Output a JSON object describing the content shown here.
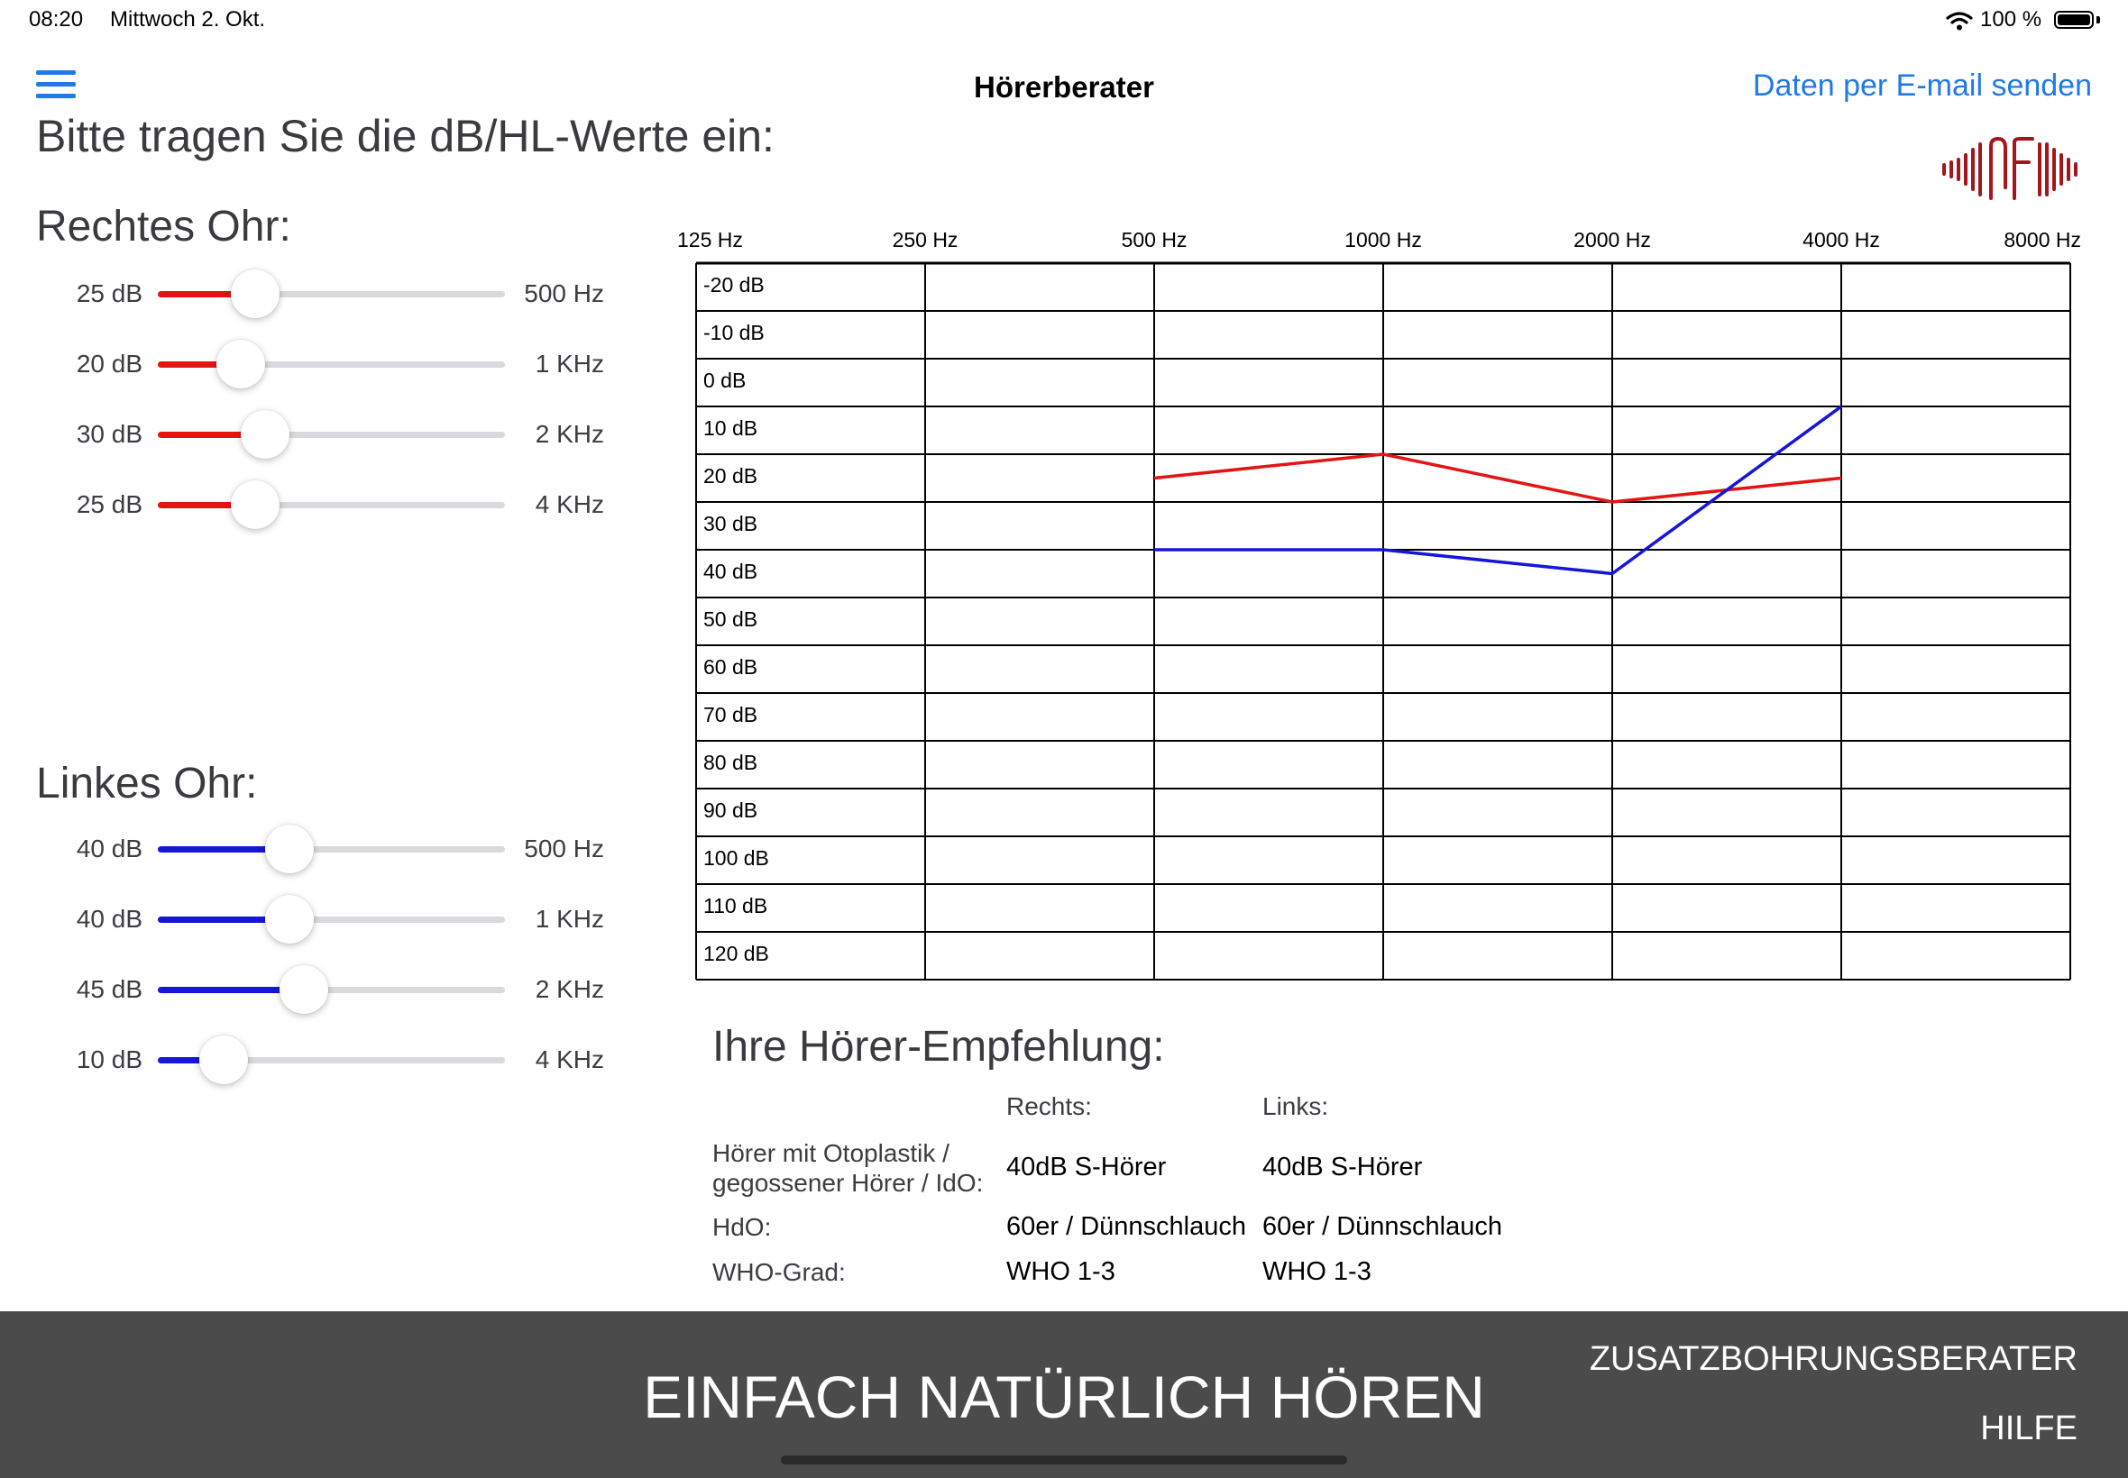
{
  "status_bar": {
    "time": "08:20",
    "date": "Mittwoch 2. Okt.",
    "battery": "100 %"
  },
  "nav": {
    "title": "Hörerberater",
    "email_link": "Daten per E-mail senden"
  },
  "instruction": "Bitte tragen Sie die dB/HL-Werte ein:",
  "colors": {
    "right": "#e41414",
    "left": "#1616d8",
    "accent": "#1f7ae8",
    "footer": "#4b4b4b",
    "logo": "#a3161c"
  },
  "right_ear": {
    "heading": "Rechtes Ohr:",
    "sliders": [
      {
        "value": "25 dB",
        "freq": "500 Hz",
        "fraction": 0.28
      },
      {
        "value": "20 dB",
        "freq": "1 KHz",
        "fraction": 0.24
      },
      {
        "value": "30 dB",
        "freq": "2 KHz",
        "fraction": 0.31
      },
      {
        "value": "25 dB",
        "freq": "4 KHz",
        "fraction": 0.28
      }
    ]
  },
  "left_ear": {
    "heading": "Linkes Ohr:",
    "sliders": [
      {
        "value": "40 dB",
        "freq": "500 Hz",
        "fraction": 0.38
      },
      {
        "value": "40 dB",
        "freq": "1 KHz",
        "fraction": 0.38
      },
      {
        "value": "45 dB",
        "freq": "2 KHz",
        "fraction": 0.42
      },
      {
        "value": "10 dB",
        "freq": "4 KHz",
        "fraction": 0.19
      }
    ]
  },
  "chart_data": {
    "type": "line",
    "x_categories": [
      "125 Hz",
      "250 Hz",
      "500 Hz",
      "1000 Hz",
      "2000 Hz",
      "4000 Hz",
      "8000 Hz"
    ],
    "y_labels": [
      "-20 dB",
      "-10 dB",
      "0 dB",
      "10 dB",
      "20 dB",
      "30 dB",
      "40 dB",
      "50 dB",
      "60 dB",
      "70 dB",
      "80 dB",
      "90 dB",
      "100 dB",
      "110 dB",
      "120 dB"
    ],
    "ylim": [
      -20,
      130
    ],
    "y_inverted": true,
    "grid": true,
    "series": [
      {
        "color": "#e41414",
        "points": [
          {
            "x": "500 Hz",
            "y": 25
          },
          {
            "x": "1000 Hz",
            "y": 20
          },
          {
            "x": "2000 Hz",
            "y": 30
          },
          {
            "x": "4000 Hz",
            "y": 25
          }
        ]
      },
      {
        "color": "#1616d8",
        "points": [
          {
            "x": "500 Hz",
            "y": 40
          },
          {
            "x": "1000 Hz",
            "y": 40
          },
          {
            "x": "2000 Hz",
            "y": 45
          },
          {
            "x": "4000 Hz",
            "y": 10
          }
        ]
      }
    ]
  },
  "recommendation": {
    "title": "Ihre Hörer-Empfehlung:",
    "col_right": "Rechts:",
    "col_left": "Links:",
    "rows": [
      {
        "label_line1": "Hörer mit Otoplastik /",
        "label_line2": "gegossener Hörer / IdO:",
        "right": "40dB S-Hörer",
        "left": "40dB S-Hörer"
      },
      {
        "label_line1": "HdO:",
        "label_line2": "",
        "right": "60er / Dünnschlauch",
        "left": "60er / Dünnschlauch"
      },
      {
        "label_line1": "WHO-Grad:",
        "label_line2": "",
        "right": "WHO 1-3",
        "left": "WHO 1-3"
      }
    ]
  },
  "footer": {
    "slogan": "EINFACH NATÜRLICH HÖREN",
    "link1": "ZUSATZBOHRUNGSBERATER",
    "link2": "HILFE"
  },
  "icons": {
    "menu": "hamburger-icon",
    "wifi": "wifi-icon",
    "battery": "battery-icon",
    "logo": "soundwave-logo"
  }
}
